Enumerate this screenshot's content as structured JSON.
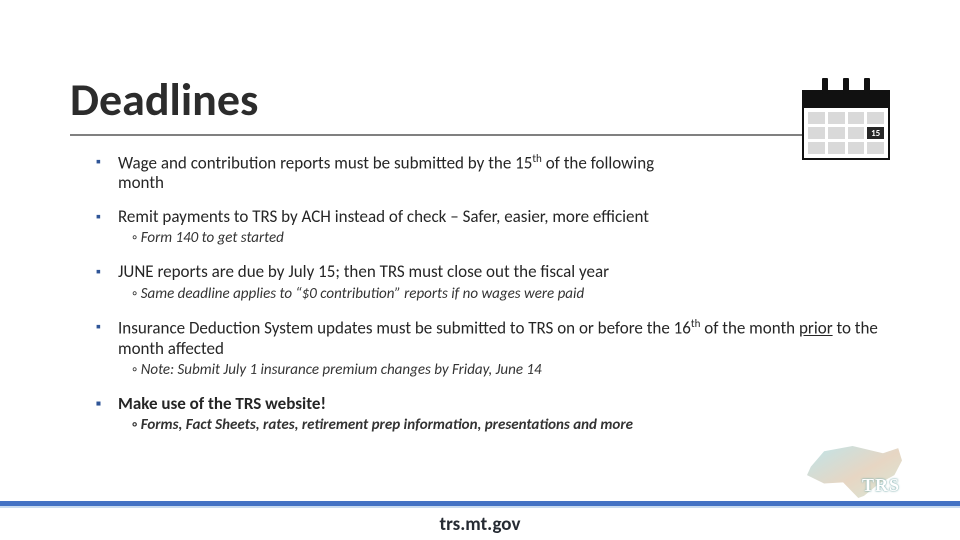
{
  "title": "Deadlines",
  "calendar": {
    "highlight_day": "15"
  },
  "bullets": [
    {
      "text_html": "Wage and contribution reports must be submitted by the 15<sup>th</sup> of the following month",
      "narrow_class": "narrow1"
    },
    {
      "text_html": "Remit payments to TRS by ACH instead of check – Safer, easier, more efficient",
      "sub_html": "Form 140 to get started"
    },
    {
      "text_html": "JUNE reports are due by July 15; then TRS must close out the fiscal year",
      "sub_html": "Same deadline applies to “$0 contribution” reports if no wages were paid"
    },
    {
      "text_html": "Insurance Deduction System updates must be submitted to TRS on or before the 16<sup>th</sup> of the month <span class='underline'>prior</span> to the month affected",
      "narrow_class": "narrow2",
      "sub_html": "Note:  Submit July 1 insurance premium changes by Friday, June 14"
    },
    {
      "text_html": "Make use of the TRS website!",
      "bold": true,
      "sub_html": "Forms, Fact Sheets, rates, retirement prep information, presentations and more",
      "sub_bold": true,
      "sub_narrow_class": "narrow5"
    }
  ],
  "footer_url": "trs.mt.gov",
  "logo_text": "TRS",
  "colors": {
    "bullet_marker": "#2f5597",
    "footer_bar": "#4472c4",
    "rule": "#808080"
  }
}
